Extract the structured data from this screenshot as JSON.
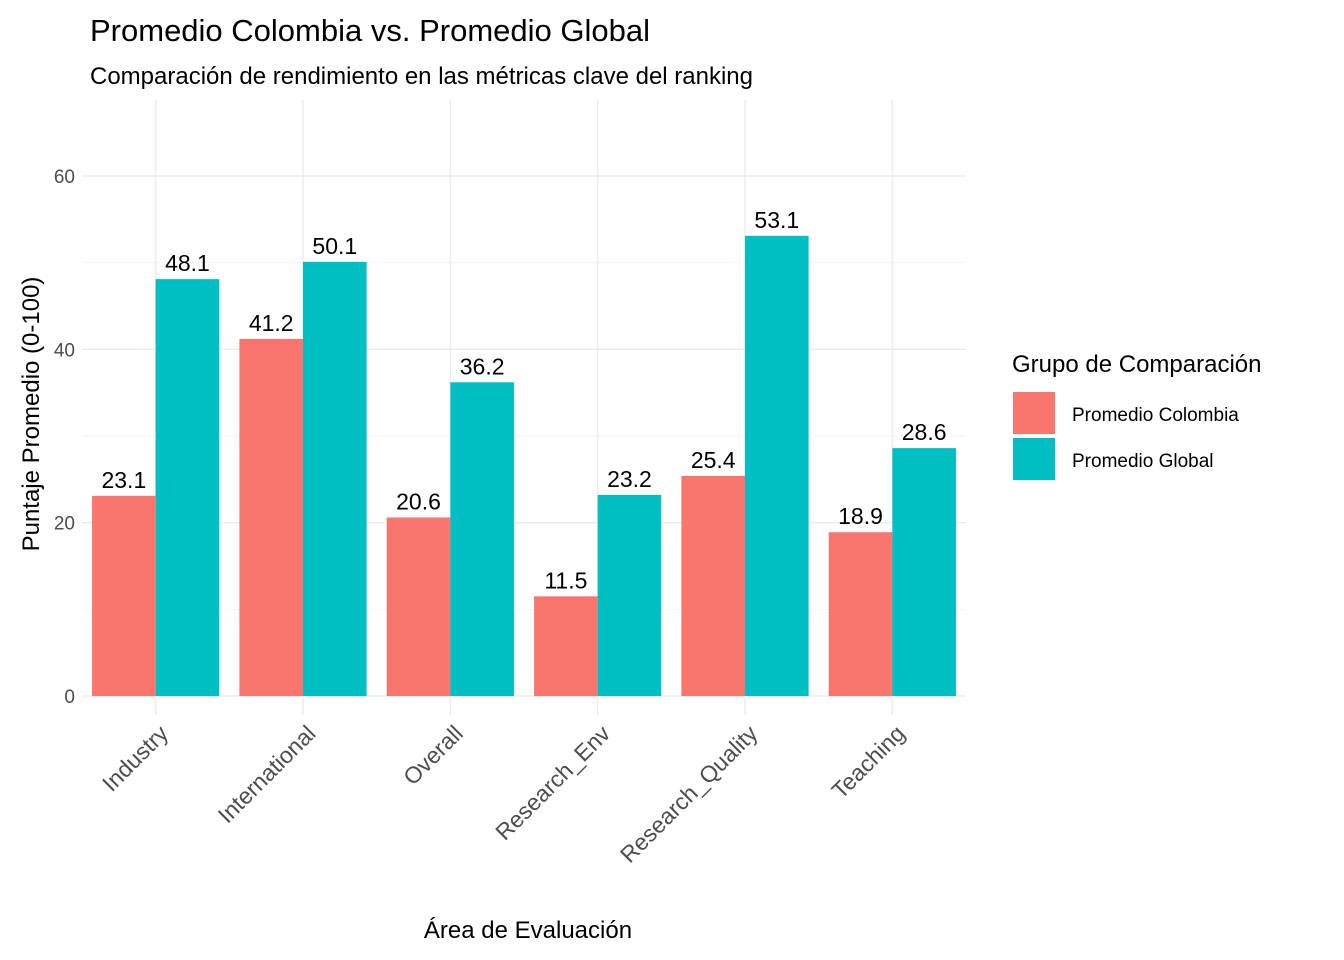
{
  "chart_data": {
    "type": "bar",
    "title": "Promedio Colombia vs. Promedio Global",
    "subtitle": "Comparación de rendimiento en las métricas clave del ranking",
    "xlabel": "Área de Evaluación",
    "ylabel": "Puntaje Promedio (0-100)",
    "categories": [
      "Industry",
      "International",
      "Overall",
      "Research_Env",
      "Research_Quality",
      "Teaching"
    ],
    "series": [
      {
        "name": "Promedio Colombia",
        "color": "#F8766D",
        "values": [
          23.1,
          41.2,
          20.6,
          11.5,
          25.4,
          18.9
        ]
      },
      {
        "name": "Promedio Global",
        "color": "#00BFC4",
        "values": [
          48.1,
          50.1,
          36.2,
          23.2,
          53.1,
          28.6
        ]
      }
    ],
    "ylim": [
      0,
      66
    ],
    "yticks": [
      0,
      20,
      40,
      60
    ],
    "grid": true,
    "legend": {
      "title": "Grupo de Comparación",
      "position": "right"
    }
  }
}
